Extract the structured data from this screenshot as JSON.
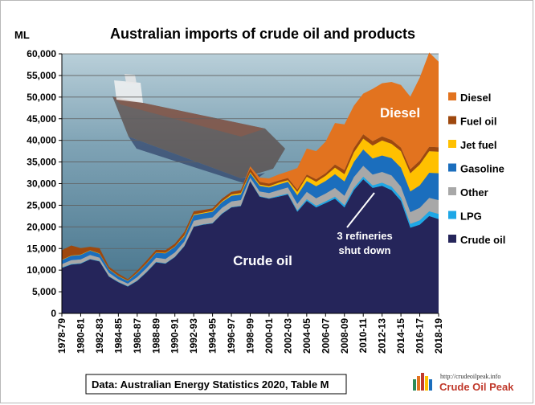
{
  "chart_data": {
    "type": "area",
    "stacked": true,
    "title": "Australian imports of crude oil and products",
    "ylabel": "ML",
    "ylim": [
      0,
      60000
    ],
    "yticks": [
      0,
      5000,
      10000,
      15000,
      20000,
      25000,
      30000,
      35000,
      40000,
      45000,
      50000,
      55000,
      60000
    ],
    "ytick_labels": [
      "0",
      "5,000",
      "10,000",
      "15,000",
      "20,000",
      "25,000",
      "30,000",
      "35,000",
      "40,000",
      "45,000",
      "50,000",
      "55,000",
      "60,000"
    ],
    "grid": "horizontal",
    "legend_position": "right",
    "x": [
      "1978-79",
      "1979-80",
      "1980-81",
      "1981-82",
      "1982-83",
      "1983-84",
      "1984-85",
      "1985-86",
      "1986-87",
      "1987-88",
      "1988-89",
      "1989-90",
      "1990-91",
      "1991-92",
      "1992-93",
      "1993-94",
      "1994-95",
      "1995-96",
      "1996-97",
      "1997-98",
      "1998-99",
      "1999-00",
      "2000-01",
      "2001-02",
      "2002-03",
      "2003-04",
      "2004-05",
      "2005-06",
      "2006-07",
      "2007-08",
      "2008-09",
      "2009-10",
      "2010-11",
      "2011-12",
      "2012-13",
      "2013-14",
      "2014-15",
      "2015-16",
      "2016-17",
      "2017-18",
      "2018-19"
    ],
    "x_tick_labels": [
      "1978-79",
      "1980-81",
      "1982-83",
      "1984-85",
      "1986-87",
      "1988-89",
      "1990-91",
      "1992-93",
      "1994-95",
      "1996-97",
      "1998-99",
      "2000-01",
      "2002-03",
      "2004-05",
      "2006-07",
      "2008-09",
      "2010-11",
      "2012-13",
      "2014-15",
      "2016-17",
      "2018-19"
    ],
    "series": [
      {
        "name": "Crude oil",
        "color": "#25255a",
        "values": [
          10500,
          11300,
          11500,
          12500,
          12000,
          8500,
          7200,
          6200,
          7500,
          9500,
          11800,
          11500,
          13000,
          15500,
          20000,
          20500,
          20800,
          23000,
          24500,
          24800,
          30500,
          27000,
          26500,
          27000,
          27500,
          23500,
          26000,
          24500,
          25500,
          26500,
          24500,
          28500,
          31000,
          29000,
          29500,
          28500,
          26000,
          19800,
          20500,
          22500,
          21800
        ]
      },
      {
        "name": "LPG",
        "color": "#1ea7e6",
        "values": [
          100,
          100,
          100,
          100,
          100,
          100,
          100,
          100,
          100,
          100,
          100,
          100,
          100,
          100,
          100,
          100,
          100,
          100,
          100,
          100,
          100,
          100,
          100,
          200,
          200,
          300,
          400,
          400,
          400,
          500,
          500,
          500,
          600,
          600,
          700,
          800,
          800,
          900,
          1000,
          1100,
          1200
        ]
      },
      {
        "name": "Other",
        "color": "#a8a8a8",
        "values": [
          800,
          900,
          900,
          900,
          800,
          800,
          600,
          600,
          800,
          900,
          1000,
          1000,
          1000,
          1000,
          1300,
          1300,
          1300,
          1300,
          1300,
          1300,
          800,
          1100,
          1200,
          1300,
          1400,
          1500,
          1700,
          1700,
          1800,
          2000,
          2200,
          2500,
          2500,
          2500,
          2500,
          2600,
          2500,
          2700,
          2900,
          3100,
          3200
        ]
      },
      {
        "name": "Gasoline",
        "color": "#1b6ebd",
        "values": [
          900,
          1000,
          1000,
          1000,
          900,
          800,
          700,
          600,
          900,
          1000,
          1100,
          1300,
          1300,
          1200,
          1300,
          1200,
          1300,
          1300,
          1300,
          1300,
          1000,
          1300,
          1300,
          1300,
          1300,
          2000,
          2500,
          2800,
          2900,
          3200,
          3300,
          3500,
          3800,
          3700,
          3800,
          4000,
          4400,
          4800,
          5200,
          5800,
          6200
        ]
      },
      {
        "name": "Jet fuel",
        "color": "#ffc000",
        "values": [
          100,
          100,
          100,
          100,
          100,
          100,
          100,
          100,
          100,
          100,
          100,
          100,
          100,
          200,
          200,
          200,
          200,
          200,
          300,
          300,
          300,
          300,
          300,
          400,
          400,
          800,
          1000,
          1000,
          1200,
          1500,
          1700,
          2200,
          2500,
          3000,
          3500,
          3300,
          3800,
          4200,
          4800,
          5000,
          5000
        ]
      },
      {
        "name": "Fuel oil",
        "color": "#9e480e",
        "values": [
          2200,
          2300,
          1500,
          800,
          1200,
          500,
          500,
          300,
          500,
          600,
          600,
          600,
          600,
          800,
          700,
          600,
          600,
          600,
          600,
          700,
          800,
          600,
          600,
          500,
          500,
          500,
          500,
          600,
          600,
          700,
          900,
          1000,
          1000,
          1000,
          900,
          900,
          800,
          900,
          900,
          1000,
          1000
        ]
      },
      {
        "name": "Diesel",
        "color": "#e2731f",
        "values": [
          0,
          0,
          0,
          0,
          0,
          0,
          0,
          0,
          0,
          0,
          0,
          0,
          0,
          0,
          0,
          0,
          0,
          0,
          0,
          0,
          500,
          1000,
          1200,
          1400,
          1500,
          5000,
          6000,
          6500,
          7300,
          9600,
          10600,
          9800,
          9400,
          12100,
          12300,
          13400,
          14500,
          16800,
          19200,
          21800,
          19800
        ]
      }
    ],
    "legend": [
      "Diesel",
      "Fuel oil",
      "Jet fuel",
      "Gasoline",
      "Other",
      "LPG",
      "Crude oil"
    ],
    "annotations": {
      "diesel_label": "Diesel",
      "crude_label": "Crude oil",
      "refineries_line1": "3 refineries",
      "refineries_line2": "shut down"
    },
    "source": "Data: Australian Energy Statistics 2020, Table M"
  },
  "logo": {
    "url": "http://crudeoilpeak.info",
    "name": "Crude Oil Peak"
  }
}
